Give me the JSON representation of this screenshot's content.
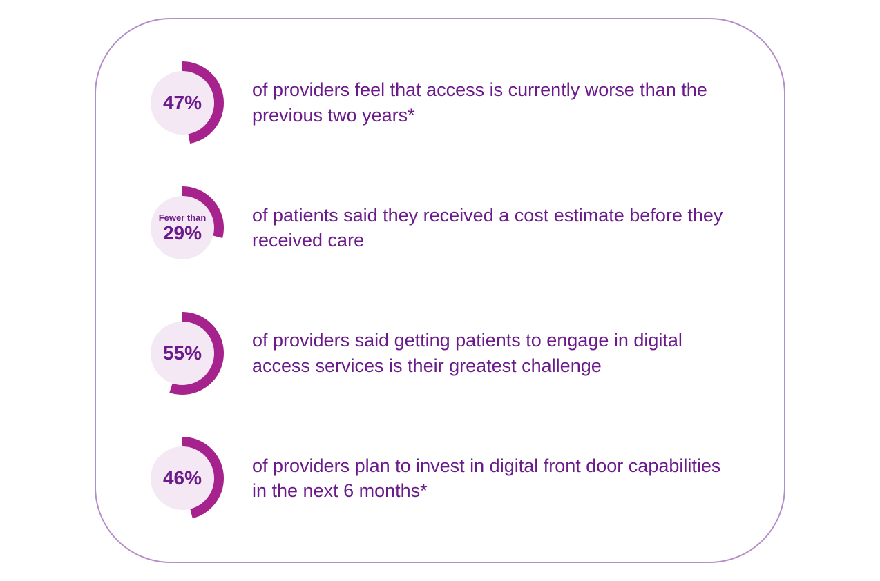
{
  "colors": {
    "frame_border": "#b48ec9",
    "donut_inner_fill": "#f4e8f4",
    "donut_arc": "#a6228c",
    "text_color": "#6a1a8a",
    "stat_value_color": "#6a1a8a",
    "background": "#ffffff"
  },
  "layout": {
    "donut_outer_radius": 60,
    "donut_inner_radius": 46,
    "arc_stroke_width": 14,
    "donut_prefix_fontsize": 13,
    "donut_value_fontsize": 28,
    "text_fontsize": 27
  },
  "stats": [
    {
      "percent": 47,
      "prefix": "",
      "value_label": "47%",
      "description": "of providers feel that access is currently worse than the previous two years*"
    },
    {
      "percent": 29,
      "prefix": "Fewer than",
      "value_label": "29%",
      "description": "of patients said they received a cost estimate before they received care"
    },
    {
      "percent": 55,
      "prefix": "",
      "value_label": "55%",
      "description": "of providers said getting patients to engage in digital access services is their greatest challenge"
    },
    {
      "percent": 46,
      "prefix": "",
      "value_label": "46%",
      "description": "of providers plan to invest in digital front door capabilities in the next 6 months*"
    }
  ]
}
